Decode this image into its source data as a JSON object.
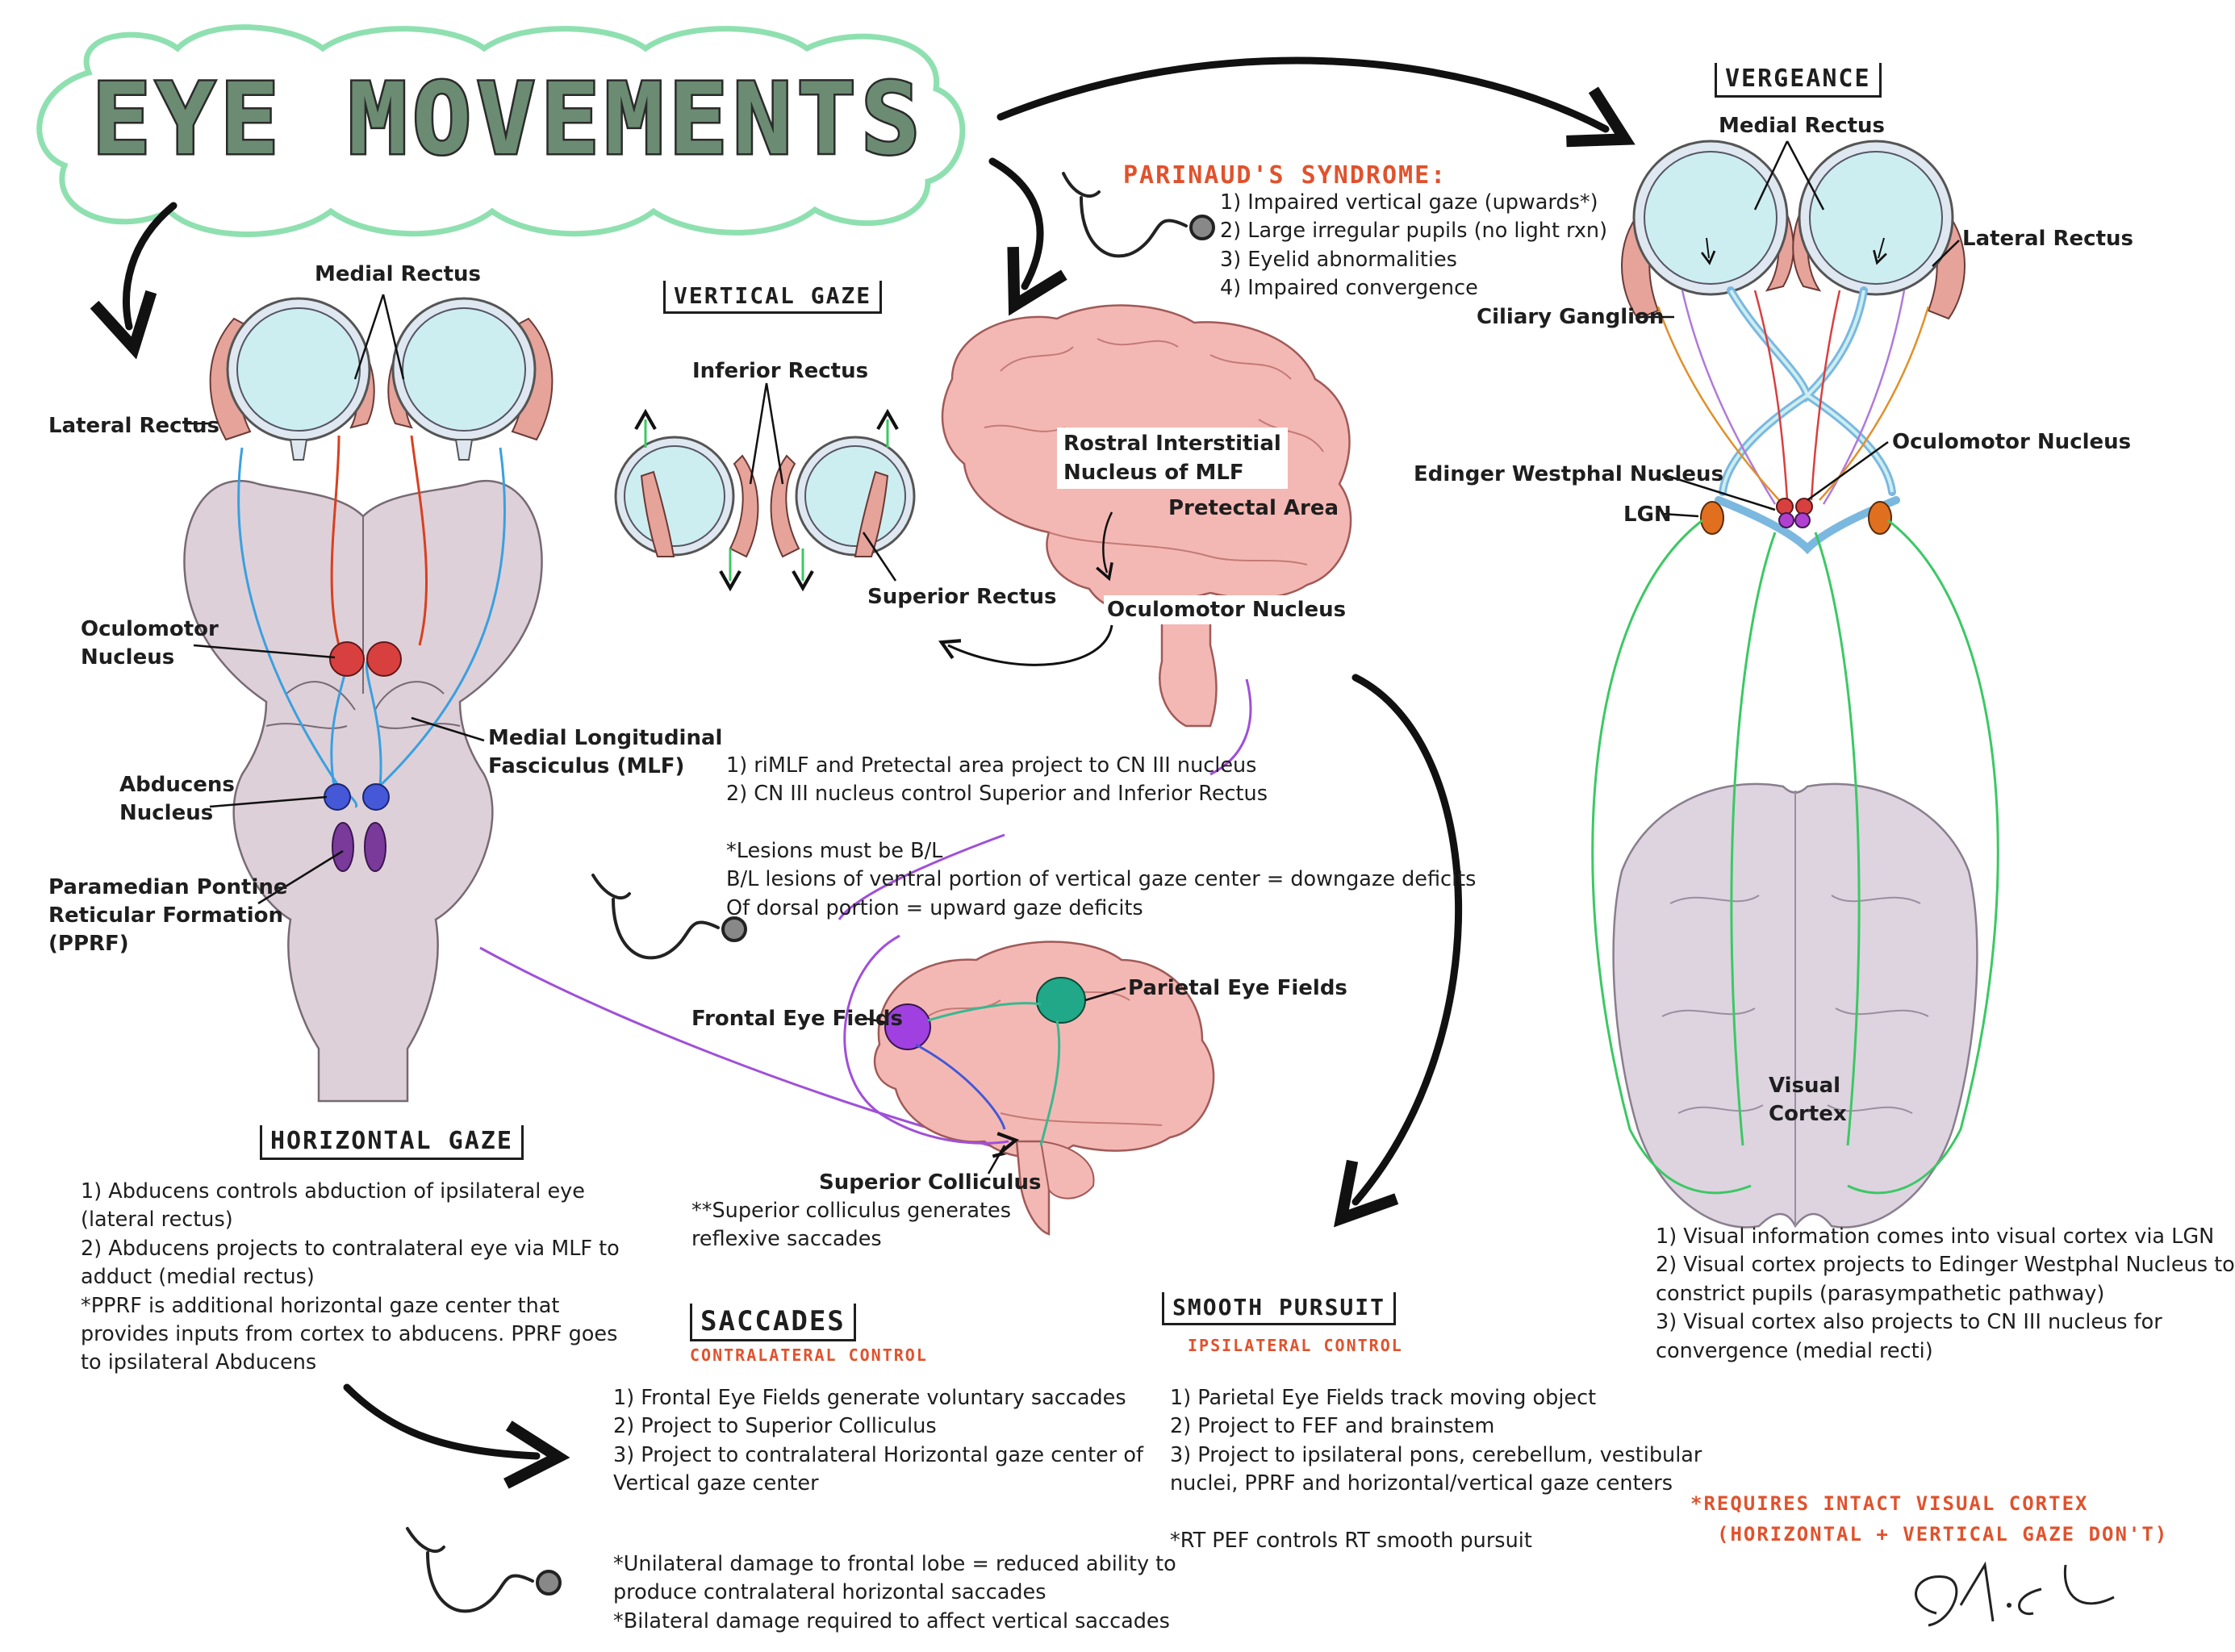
{
  "title": "EYE MOVEMENTS",
  "colors": {
    "title_fill": "#6b8c72",
    "cloud_outline": "#8fe0b0",
    "muscle": "#e6a39a",
    "eyeball": "#cdeef0",
    "brain": "#f4b8b4",
    "brainstem": "#ded0d8",
    "red_nucleus": "#d84040",
    "blue_nucleus": "#4458d8",
    "purple_nucleus": "#7a3a9a",
    "green_path": "#3cc864",
    "orange_lgn": "#e07020",
    "annotation_red": "#e0522d"
  },
  "horizontal": {
    "labels": {
      "medial_rectus": "Medial Rectus",
      "lateral_rectus": "Lateral Rectus",
      "oculomotor_line1": "Oculomotor",
      "oculomotor_line2": "Nucleus",
      "mlf_line1": "Medial Longitudinal",
      "mlf_line2": "Fasciculus (MLF)",
      "abducens_line1": "Abducens",
      "abducens_line2": "Nucleus",
      "pprf_line1": "Paramedian Pontine",
      "pprf_line2": "Reticular Formation",
      "pprf_line3": "(PPRF)"
    },
    "heading": "HORIZONTAL GAZE",
    "notes": [
      "1) Abducens controls abduction of ipsilateral eye",
      "(lateral rectus)",
      "2) Abducens projects to contralateral eye via MLF to",
      "adduct (medial rectus)",
      "*PPRF is additional horizontal gaze center that",
      "provides inputs from cortex to abducens. PPRF goes",
      "to ipsilateral Abducens"
    ]
  },
  "vertical": {
    "heading": "VERTICAL GAZE",
    "labels": {
      "inferior_rectus": "Inferior Rectus",
      "superior_rectus": "Superior Rectus",
      "riMLF_line1": "Rostral Interstitial",
      "riMLF_line2": "Nucleus of MLF",
      "pretectal": "Pretectal Area",
      "oculomotor": "Oculomotor Nucleus"
    },
    "notes": [
      "1) riMLF and Pretectal area project to CN III nucleus",
      "2) CN III nucleus control Superior and Inferior Rectus",
      "",
      "*Lesions must be B/L",
      "B/L lesions of ventral portion of vertical gaze center = downgaze deficits",
      "Of dorsal portion = upward gaze deficits"
    ]
  },
  "parinaud": {
    "heading": "PARINAUD'S SYNDROME:",
    "items": [
      "1) Impaired vertical gaze (upwards*)",
      "2) Large irregular pupils (no light rxn)",
      "3) Eyelid abnormalities",
      "4) Impaired convergence"
    ]
  },
  "cortex": {
    "labels": {
      "frontal": "Frontal Eye Fields",
      "parietal": "Parietal Eye Fields",
      "superior_colliculus": "Superior Colliculus"
    },
    "note": [
      "**Superior colliculus generates",
      "reflexive saccades"
    ]
  },
  "saccades": {
    "heading": "SACCADES",
    "subheading": "CONTRALATERAL CONTROL",
    "notes": [
      "1) Frontal Eye Fields generate voluntary saccades",
      "2) Project to Superior Colliculus",
      "3) Project to contralateral Horizontal gaze center of",
      "Vertical gaze center"
    ],
    "damage": [
      "*Unilateral damage to frontal lobe = reduced ability to",
      "produce contralateral horizontal saccades",
      "*Bilateral damage required to affect vertical saccades"
    ]
  },
  "smooth": {
    "heading": "SMOOTH PURSUIT",
    "subheading": "IPSILATERAL CONTROL",
    "notes": [
      "1) Parietal Eye Fields track moving object",
      "2) Project to FEF and brainstem",
      "3) Project to ipsilateral pons, cerebellum, vestibular",
      "nuclei, PPRF and horizontal/vertical gaze centers",
      "",
      "*RT PEF controls RT smooth pursuit"
    ]
  },
  "vergence": {
    "heading": "VERGEANCE",
    "labels": {
      "medial_rectus": "Medial Rectus",
      "lateral_rectus": "Lateral Rectus",
      "ciliary": "Ciliary Ganglion",
      "oculomotor": "Oculomotor Nucleus",
      "edinger": "Edinger Westphal Nucleus",
      "lgn": "LGN",
      "visual_line1": "Visual",
      "visual_line2": "Cortex"
    },
    "notes": [
      "1) Visual information comes into visual cortex via LGN",
      "2) Visual cortex projects to Edinger Westphal Nucleus to",
      "constrict pupils (parasympathetic pathway)",
      "3) Visual cortex also projects to CN III nucleus for",
      "convergence (medial recti)"
    ],
    "requires": [
      "*REQUIRES INTACT VISUAL CORTEX",
      "(HORIZONTAL + VERTICAL GAZE DON'T)"
    ]
  },
  "icons": [
    "stethoscope-icon",
    "signature-mark"
  ]
}
